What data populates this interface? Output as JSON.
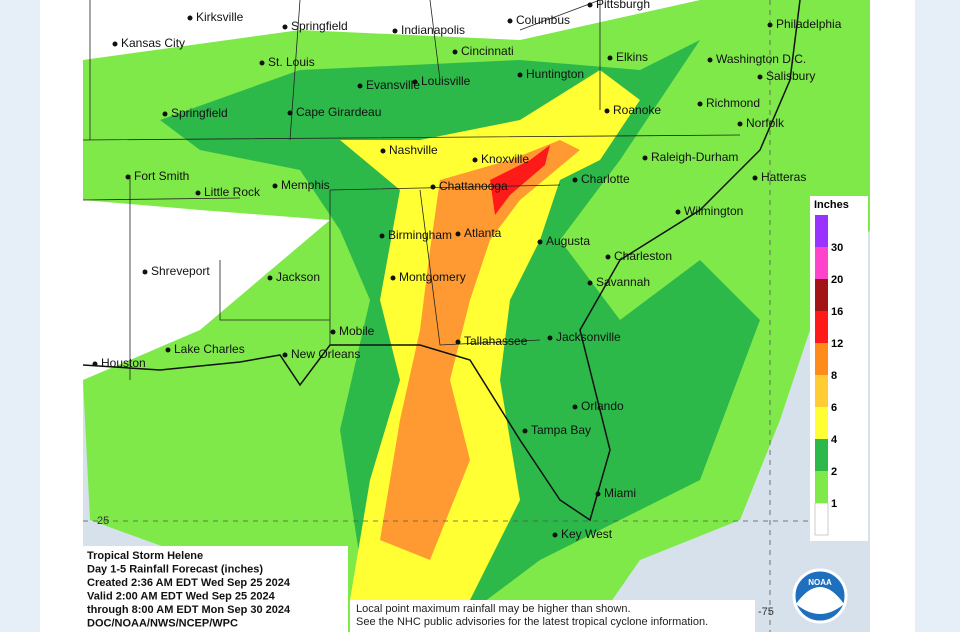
{
  "map": {
    "cities": [
      "Kirksville",
      "Springfield",
      "Indianapolis",
      "Columbus",
      "Pittsburgh",
      "Philadelphia",
      "Kansas City",
      "St. Louis",
      "Cincinnati",
      "Elkins",
      "Washington D.C.",
      "Salisbury",
      "Evansville",
      "Louisville",
      "Huntington",
      "Springfield",
      "Cape Girardeau",
      "Roanoke",
      "Richmond",
      "Norfolk",
      "Nashville",
      "Knoxville",
      "Raleigh-Durham",
      "Fort Smith",
      "Memphis",
      "Chattanooga",
      "Charlotte",
      "Hatteras",
      "Little Rock",
      "Wilmington",
      "Birmingham",
      "Atlanta",
      "Augusta",
      "Shreveport",
      "Jackson",
      "Charleston",
      "Montgomery",
      "Savannah",
      "Mobile",
      "Tallahassee",
      "Jacksonville",
      "Lake Charles",
      "New Orleans",
      "Houston",
      "Orlando",
      "Tampa Bay",
      "Miami",
      "Key West"
    ],
    "latitude_label": 25,
    "longitude_label": -75,
    "legend": {
      "title": "Inches",
      "base_color": "#ffffff",
      "levels": [
        {
          "value": 1,
          "color": "#7fe94a"
        },
        {
          "value": 2,
          "color": "#2db84a"
        },
        {
          "value": 4,
          "color": "#ffff33"
        },
        {
          "value": 6,
          "color": "#ffcc33"
        },
        {
          "value": 8,
          "color": "#ff8c1a"
        },
        {
          "value": 12,
          "color": "#ff1a1a"
        },
        {
          "value": 16,
          "color": "#a31515"
        },
        {
          "value": 20,
          "color": "#ff44cc"
        },
        {
          "value": 30,
          "color": "#9933ff"
        }
      ]
    },
    "info": [
      "Tropical Storm Helene",
      "Day 1-5 Rainfall Forecast (inches)",
      "Created 2:36 AM EDT Wed Sep 25 2024",
      "Valid 2:00 AM EDT Wed Sep 25 2024",
      "through 8:00 AM EDT Mon Sep 30 2024",
      "DOC/NOAA/NWS/NCEP/WPC"
    ],
    "disclaimer": [
      "Local point maximum rainfall may be higher than shown.",
      "See the NHC public advisories for the latest tropical cyclone information."
    ],
    "logo": "NOAA"
  }
}
